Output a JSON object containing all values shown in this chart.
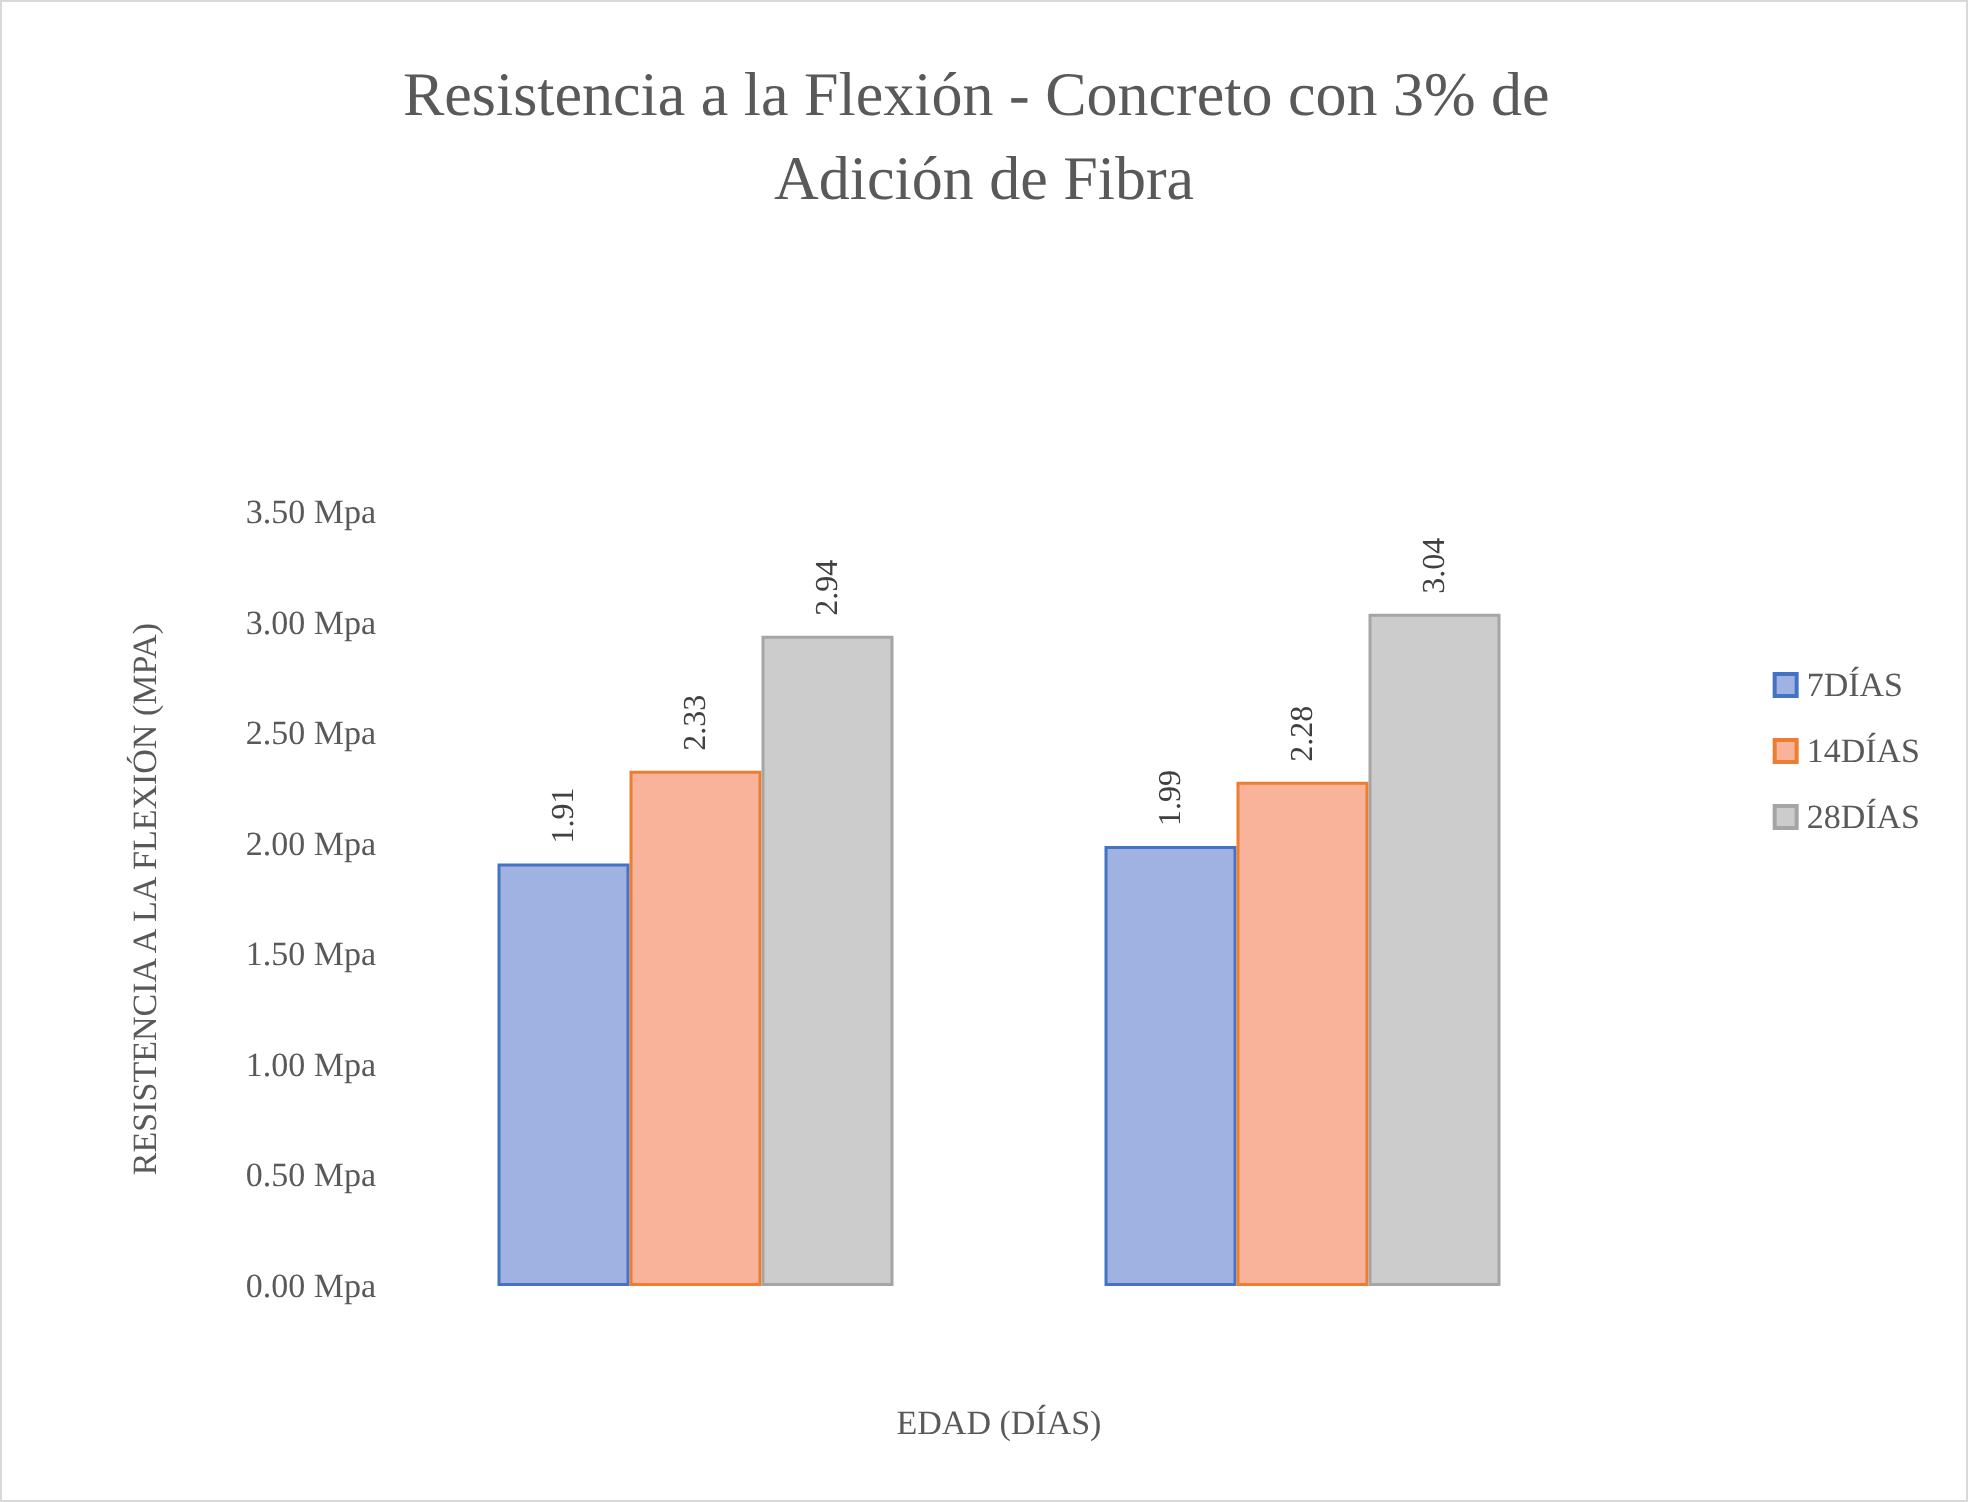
{
  "chart_data": {
    "type": "bar",
    "title": "Resistencia a la Flexión - Concreto con 3% de Adición de Fibra",
    "xlabel": "EDAD (DÍAS)",
    "ylabel": "RESISTENCIA A LA FLEXIÓN (MPA)",
    "categories": [
      null,
      null
    ],
    "series": [
      {
        "name": "7DÍAS",
        "color": "#9fb2e2",
        "values": [
          1.91,
          1.99
        ]
      },
      {
        "name": "14DÍAS",
        "color": "#f8b39a",
        "values": [
          2.33,
          2.28
        ]
      },
      {
        "name": "28DÍAS",
        "color": "#cccccc",
        "values": [
          2.94,
          3.04
        ]
      }
    ],
    "ylim": [
      0,
      3.5
    ],
    "yticks": [
      {
        "value": 0,
        "label": "0.00 Mpa"
      },
      {
        "value": 0.5,
        "label": "0.50 Mpa"
      },
      {
        "value": 1,
        "label": "1.00 Mpa"
      },
      {
        "value": 1.5,
        "label": "1.50 Mpa"
      },
      {
        "value": 2,
        "label": "2.00 Mpa"
      },
      {
        "value": 2.5,
        "label": "2.50 Mpa"
      },
      {
        "value": 3,
        "label": "3.00 Mpa"
      },
      {
        "value": 3.5,
        "label": "3.50 Mpa"
      }
    ],
    "data_labels": true,
    "legend": "right",
    "grid": false
  }
}
